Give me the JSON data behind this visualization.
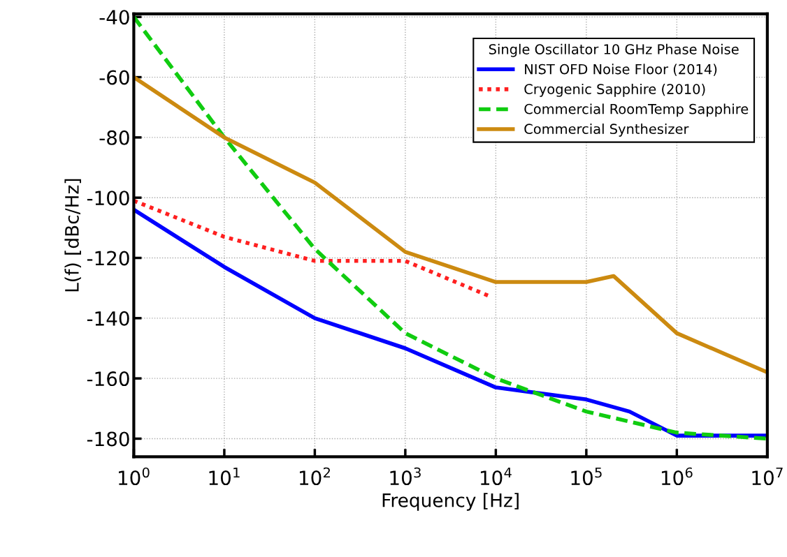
{
  "chart_data": {
    "type": "line",
    "xlabel": "Frequency [Hz]",
    "ylabel": "L(f) [dBc/Hz]",
    "legend_title": "Single Oscillator 10 GHz Phase Noise",
    "log": "x",
    "grid": true,
    "legend": "top right",
    "xlim": [
      1,
      10000000
    ],
    "ylim": [
      -186,
      -39
    ],
    "xticks": [
      {
        "value": 1,
        "label": "10$^{0}$"
      },
      {
        "value": 10,
        "label": "10$^{1}$"
      },
      {
        "value": 100,
        "label": "10$^{2}$"
      },
      {
        "value": 1000,
        "label": "10$^{3}$"
      },
      {
        "value": 10000,
        "label": "10$^{4}$"
      },
      {
        "value": 100000,
        "label": "10$^{5}$"
      },
      {
        "value": 1000000,
        "label": "10$^{6}$"
      },
      {
        "value": 10000000,
        "label": "10$^{7}$"
      }
    ],
    "yticks": [
      -180,
      -160,
      -140,
      -120,
      -100,
      -80,
      -60,
      -40
    ],
    "series": [
      {
        "name": "NIST OFD Noise Floor (2014)",
        "color": "#0000ff",
        "line_style": "solid",
        "x": [
          1,
          10,
          100,
          1000,
          10000,
          100000,
          300000,
          1000000,
          10000000
        ],
        "values": [
          -104,
          -123,
          -140,
          -150,
          -163,
          -167,
          -171,
          -179,
          -179
        ]
      },
      {
        "name": "Cryogenic Sapphire (2010)",
        "color": "#ff2020",
        "line_style": "dotted",
        "x": [
          1,
          10,
          100,
          1000,
          9000
        ],
        "values": [
          -101,
          -113,
          -121,
          -121,
          -133
        ]
      },
      {
        "name": "Commercial RoomTemp Sapphire",
        "color": "#10cc10",
        "line_style": "dashed",
        "x": [
          1,
          10,
          100,
          1000,
          10000,
          100000,
          1000000,
          10000000
        ],
        "values": [
          -40,
          -80,
          -117,
          -145,
          -160,
          -171,
          -178,
          -180
        ]
      },
      {
        "name": "Commercial Synthesizer",
        "color": "#cc8a10",
        "line_style": "solid",
        "x": [
          1,
          10,
          100,
          1000,
          10000,
          100000,
          200000,
          1000000,
          10000000
        ],
        "values": [
          -60,
          -80,
          -95,
          -118,
          -128,
          -128,
          -126,
          -145,
          -158
        ]
      }
    ]
  }
}
